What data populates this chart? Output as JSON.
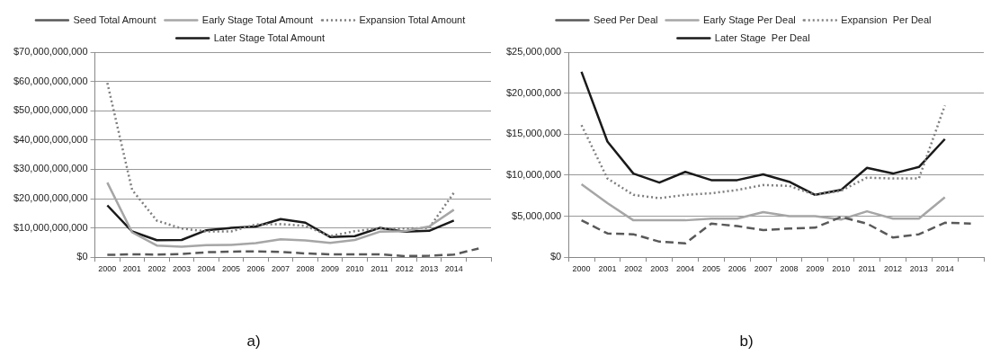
{
  "chart_data": [
    {
      "type": "line",
      "categories": [
        "2000",
        "2001",
        "2002",
        "2003",
        "2004",
        "2005",
        "2006",
        "2007",
        "2008",
        "2009",
        "2010",
        "2011",
        "2012",
        "2013",
        "2014",
        null
      ],
      "series": [
        {
          "name": "Seed Total Amount",
          "color": "#595959",
          "line_style": "dashed",
          "values": [
            800000000,
            1000000000,
            900000000,
            1100000000,
            1700000000,
            1900000000,
            2000000000,
            1800000000,
            1300000000,
            1000000000,
            1000000000,
            1000000000,
            400000000,
            500000000,
            900000000,
            3000000000
          ]
        },
        {
          "name": "Early Stage Total Amount",
          "color": "#a6a6a6",
          "line_style": "solid",
          "values": [
            25500000000,
            8500000000,
            4000000000,
            3600000000,
            4100000000,
            4200000000,
            4800000000,
            6100000000,
            5700000000,
            4900000000,
            5900000000,
            8700000000,
            8900000000,
            10500000000,
            16200000000,
            null
          ]
        },
        {
          "name": "Expansion Total Amount",
          "color": "#7f7f7f",
          "line_style": "dotted",
          "values": [
            59500000000,
            23000000000,
            12500000000,
            9800000000,
            8800000000,
            8800000000,
            11200000000,
            11300000000,
            10700000000,
            7200000000,
            8900000000,
            9800000000,
            9800000000,
            10000000000,
            22000000000,
            null
          ]
        },
        {
          "name": "Later Stage Total Amount",
          "color": "#1a1a1a",
          "line_style": "solid",
          "values": [
            17700000000,
            8800000000,
            5800000000,
            5900000000,
            9200000000,
            10000000000,
            10500000000,
            13000000000,
            11800000000,
            6900000000,
            7200000000,
            10000000000,
            8700000000,
            9000000000,
            12500000000,
            null
          ]
        }
      ],
      "ylim": [
        0,
        70000000000
      ],
      "yticks": [
        {
          "value": 0,
          "label": "$0"
        },
        {
          "value": 10000000000,
          "label": "$10,000,000,000"
        },
        {
          "value": 20000000000,
          "label": "$20,000,000,000"
        },
        {
          "value": 30000000000,
          "label": "$30,000,000,000"
        },
        {
          "value": 40000000000,
          "label": "$40,000,000,000"
        },
        {
          "value": 50000000000,
          "label": "$50,000,000,000"
        },
        {
          "value": 60000000000,
          "label": "$60,000,000,000"
        },
        {
          "value": 70000000000,
          "label": "$70,000,000,000"
        }
      ],
      "grid": "y",
      "legend": "top",
      "annotations": [
        "a)"
      ]
    },
    {
      "type": "line",
      "categories": [
        "2000",
        "2001",
        "2002",
        "2003",
        "2004",
        "2005",
        "2006",
        "2007",
        "2008",
        "2009",
        "2010",
        "2011",
        "2012",
        "2013",
        "2014",
        null
      ],
      "series": [
        {
          "name": "Seed Per Deal",
          "color": "#595959",
          "line_style": "dashed",
          "values": [
            4500000,
            2900000,
            2800000,
            1900000,
            1700000,
            4100000,
            3800000,
            3300000,
            3500000,
            3600000,
            4900000,
            4100000,
            2400000,
            2800000,
            4200000,
            4100000
          ]
        },
        {
          "name": "Early Stage Per Deal",
          "color": "#a6a6a6",
          "line_style": "solid",
          "values": [
            8900000,
            6600000,
            4500000,
            4500000,
            4500000,
            4700000,
            4700000,
            5500000,
            5000000,
            5000000,
            4600000,
            5600000,
            4700000,
            4700000,
            7300000,
            null
          ]
        },
        {
          "name": "Expansion  Per Deal",
          "color": "#7f7f7f",
          "line_style": "dotted",
          "values": [
            16100000,
            9600000,
            7600000,
            7200000,
            7600000,
            7800000,
            8200000,
            8800000,
            8700000,
            7600000,
            8100000,
            9700000,
            9600000,
            9600000,
            18500000,
            null
          ]
        },
        {
          "name": "Later Stage  Per Deal",
          "color": "#1a1a1a",
          "line_style": "solid",
          "values": [
            22600000,
            14100000,
            10200000,
            9100000,
            10400000,
            9400000,
            9400000,
            10100000,
            9200000,
            7600000,
            8200000,
            10900000,
            10200000,
            11000000,
            14400000,
            null
          ]
        }
      ],
      "ylim": [
        0,
        25000000
      ],
      "yticks": [
        {
          "value": 0,
          "label": "$0"
        },
        {
          "value": 5000000,
          "label": "$5,000,000"
        },
        {
          "value": 10000000,
          "label": "$10,000,000"
        },
        {
          "value": 15000000,
          "label": "$15,000,000"
        },
        {
          "value": 20000000,
          "label": "$20,000,000"
        },
        {
          "value": 25000000,
          "label": "$25,000,000"
        }
      ],
      "grid": "y",
      "legend": "top",
      "annotations": [
        "b)"
      ]
    }
  ]
}
